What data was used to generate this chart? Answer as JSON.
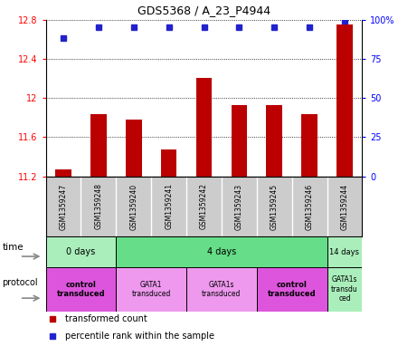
{
  "title": "GDS5368 / A_23_P4944",
  "samples": [
    "GSM1359247",
    "GSM1359248",
    "GSM1359240",
    "GSM1359241",
    "GSM1359242",
    "GSM1359243",
    "GSM1359245",
    "GSM1359246",
    "GSM1359244"
  ],
  "transformed_counts": [
    11.27,
    11.83,
    11.78,
    11.47,
    12.2,
    11.93,
    11.93,
    11.83,
    12.75
  ],
  "percentile_ranks": [
    88,
    95,
    95,
    95,
    95,
    95,
    95,
    95,
    99
  ],
  "bar_bottom": 11.2,
  "ylim_left": [
    11.2,
    12.8
  ],
  "ylim_right": [
    0,
    100
  ],
  "yticks_left": [
    11.2,
    11.6,
    12.0,
    12.4,
    12.8
  ],
  "ytick_labels_left": [
    "11.2",
    "11.6",
    "12",
    "12.4",
    "12.8"
  ],
  "yticks_right": [
    0,
    25,
    50,
    75,
    100
  ],
  "ytick_labels_right": [
    "0",
    "25",
    "50",
    "75",
    "100%"
  ],
  "bar_color": "#bb0000",
  "dot_color": "#2222cc",
  "grid_color": "#000000",
  "time_groups": [
    {
      "label": "0 days",
      "start": 0,
      "end": 2,
      "color": "#aaeebb"
    },
    {
      "label": "4 days",
      "start": 2,
      "end": 8,
      "color": "#66dd88"
    },
    {
      "label": "14 days",
      "start": 8,
      "end": 9,
      "color": "#aaeebb"
    }
  ],
  "protocol_groups": [
    {
      "label": "control\ntransduced",
      "start": 0,
      "end": 2,
      "color": "#dd55dd",
      "bold": true
    },
    {
      "label": "GATA1\ntransduced",
      "start": 2,
      "end": 4,
      "color": "#ee99ee",
      "bold": false
    },
    {
      "label": "GATA1s\ntransduced",
      "start": 4,
      "end": 6,
      "color": "#ee99ee",
      "bold": false
    },
    {
      "label": "control\ntransduced",
      "start": 6,
      "end": 8,
      "color": "#dd55dd",
      "bold": true
    },
    {
      "label": "GATA1s\ntransdu\nced",
      "start": 8,
      "end": 9,
      "color": "#aaeebb",
      "bold": false
    }
  ],
  "legend_items": [
    {
      "label": "transformed count",
      "color": "#bb0000"
    },
    {
      "label": "percentile rank within the sample",
      "color": "#2222cc"
    }
  ],
  "bg_color": "#ffffff"
}
